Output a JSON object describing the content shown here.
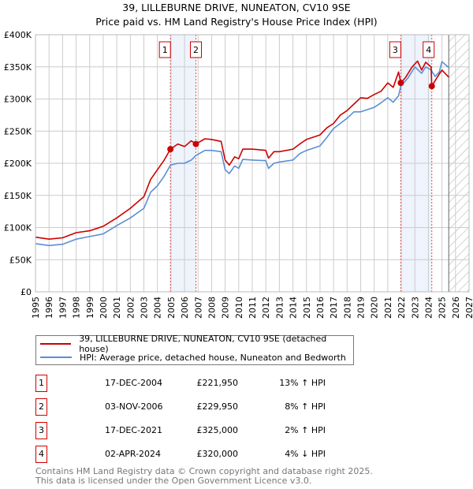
{
  "title_line1": "39, LILLEBURNE DRIVE, NUNEATON, CV10 9SE",
  "title_line2": "Price paid vs. HM Land Registry's House Price Index (HPI)",
  "chart_data": {
    "type": "line",
    "title": "Price paid vs. HM Land Registry's House Price Index (HPI)",
    "xlim": [
      1995,
      2027
    ],
    "ylim": [
      0,
      400000
    ],
    "x_ticks": [
      "1995",
      "1996",
      "1997",
      "1998",
      "1999",
      "2000",
      "2001",
      "2002",
      "2003",
      "2004",
      "2005",
      "2006",
      "2007",
      "2008",
      "2009",
      "2010",
      "2011",
      "2012",
      "2013",
      "2014",
      "2015",
      "2016",
      "2017",
      "2018",
      "2019",
      "2020",
      "2021",
      "2022",
      "2023",
      "2024",
      "2025",
      "2026",
      "2027"
    ],
    "y_ticks": [
      {
        "v": 0,
        "label": "£0"
      },
      {
        "v": 50000,
        "label": "£50K"
      },
      {
        "v": 100000,
        "label": "£100K"
      },
      {
        "v": 150000,
        "label": "£150K"
      },
      {
        "v": 200000,
        "label": "£200K"
      },
      {
        "v": 250000,
        "label": "£250K"
      },
      {
        "v": 300000,
        "label": "£300K"
      },
      {
        "v": 350000,
        "label": "£350K"
      },
      {
        "v": 400000,
        "label": "£400K"
      }
    ],
    "grid": true,
    "forecast_hatch_from": 2025.5,
    "shaded_ranges": [
      [
        2004.96,
        2006.84
      ],
      [
        2021.96,
        2024.25
      ]
    ],
    "series": [
      {
        "name": "39, LILLEBURNE DRIVE, NUNEATON, CV10 9SE (detached house)",
        "color": "#cc0000",
        "x": [
          1995,
          1996,
          1997,
          1998,
          1999,
          2000,
          2001,
          2002,
          2003,
          2003.5,
          2004,
          2004.5,
          2004.96,
          2005.5,
          2006,
          2006.5,
          2006.84,
          2007.5,
          2008,
          2008.7,
          2009,
          2009.3,
          2009.7,
          2010,
          2010.3,
          2011,
          2012,
          2012.2,
          2012.6,
          2013,
          2014,
          2014.5,
          2015,
          2016,
          2016.5,
          2017,
          2017.5,
          2018,
          2018.5,
          2019,
          2019.5,
          2020,
          2020.5,
          2021,
          2021.4,
          2021.8,
          2021.96,
          2022.3,
          2022.8,
          2023.2,
          2023.5,
          2023.8,
          2024.2,
          2024.25,
          2024.6,
          2025,
          2025.5
        ],
        "y": [
          85000,
          82000,
          84000,
          92000,
          95000,
          102000,
          115000,
          130000,
          148000,
          175000,
          190000,
          205000,
          221950,
          230000,
          226000,
          235000,
          229950,
          238000,
          237000,
          234000,
          205000,
          197000,
          210000,
          207000,
          222000,
          222000,
          220000,
          208000,
          218000,
          218000,
          222000,
          230000,
          237000,
          244000,
          255000,
          262000,
          275000,
          282000,
          292000,
          302000,
          301000,
          307000,
          312000,
          325000,
          318000,
          342000,
          325000,
          333000,
          350000,
          359000,
          345000,
          357000,
          350000,
          320000,
          332000,
          345000,
          334000
        ]
      },
      {
        "name": "HPI: Average price, detached house, Nuneaton and Bedworth",
        "color": "#5b8fd4",
        "x": [
          1995,
          1996,
          1997,
          1998,
          1999,
          2000,
          2001,
          2002,
          2003,
          2003.5,
          2004,
          2004.5,
          2004.96,
          2005.5,
          2006,
          2006.5,
          2006.84,
          2007.5,
          2008,
          2008.7,
          2009,
          2009.3,
          2009.7,
          2010,
          2010.3,
          2011,
          2012,
          2012.2,
          2012.6,
          2013,
          2014,
          2014.5,
          2015,
          2016,
          2016.5,
          2017,
          2017.5,
          2018,
          2018.5,
          2019,
          2020,
          2020.5,
          2021,
          2021.4,
          2021.8,
          2021.96,
          2022.5,
          2023,
          2023.5,
          2023.8,
          2024.2,
          2024.5,
          2024.8,
          2025,
          2025.5
        ],
        "y": [
          75000,
          72000,
          74000,
          82000,
          86000,
          90000,
          103000,
          115000,
          130000,
          155000,
          165000,
          180000,
          197000,
          200000,
          200000,
          205000,
          212000,
          220000,
          220000,
          218000,
          190000,
          184000,
          196000,
          192000,
          206000,
          205000,
          204000,
          192000,
          200000,
          202000,
          205000,
          215000,
          220000,
          227000,
          240000,
          254000,
          262000,
          270000,
          280000,
          280000,
          287000,
          294000,
          302000,
          295000,
          305000,
          320000,
          333000,
          350000,
          340000,
          350000,
          345000,
          335000,
          342000,
          358000,
          349000
        ]
      }
    ],
    "sales": [
      {
        "id": "1",
        "x": 2004.96,
        "y": 221950
      },
      {
        "id": "2",
        "x": 2006.84,
        "y": 229950
      },
      {
        "id": "3",
        "x": 2021.96,
        "y": 325000
      },
      {
        "id": "4",
        "x": 2024.25,
        "y": 320000
      }
    ]
  },
  "legend": [
    {
      "label": "39, LILLEBURNE DRIVE, NUNEATON, CV10 9SE (detached house)",
      "color": "#cc0000"
    },
    {
      "label": "HPI: Average price, detached house, Nuneaton and Bedworth",
      "color": "#5b8fd4"
    }
  ],
  "sales_table": [
    {
      "num": "1",
      "date": "17-DEC-2004",
      "price": "£221,950",
      "hpi": "13% ↑ HPI"
    },
    {
      "num": "2",
      "date": "03-NOV-2006",
      "price": "£229,950",
      "hpi": "8% ↑ HPI"
    },
    {
      "num": "3",
      "date": "17-DEC-2021",
      "price": "£325,000",
      "hpi": "2% ↑ HPI"
    },
    {
      "num": "4",
      "date": "02-APR-2024",
      "price": "£320,000",
      "hpi": "4% ↓ HPI"
    }
  ],
  "footer_line1": "Contains HM Land Registry data © Crown copyright and database right 2025.",
  "footer_line2": "This data is licensed under the Open Government Licence v3.0."
}
